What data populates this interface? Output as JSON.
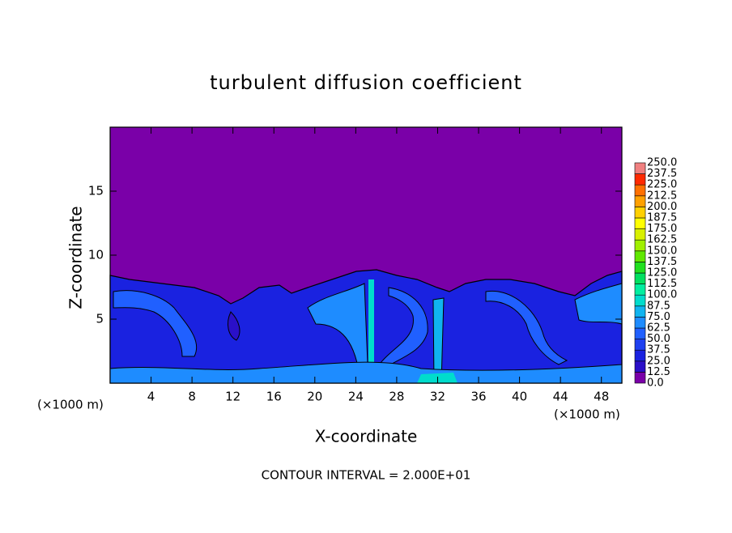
{
  "chart_data": {
    "type": "contour",
    "title": "turbulent diffusion coefficient",
    "xlabel": "X-coordinate",
    "ylabel": "Z-coordinate",
    "x_unit": "(×1000 m)",
    "footnote": "CONTOUR INTERVAL = 2.000E+01",
    "xlim": [
      0,
      50
    ],
    "xticks": [
      4,
      8,
      12,
      16,
      20,
      24,
      28,
      32,
      36,
      40,
      44,
      48
    ],
    "ylim": [
      0,
      20
    ],
    "yticks": [
      5,
      10,
      15
    ],
    "colorbar": {
      "levels": [
        {
          "value": 0,
          "label": "0.0"
        },
        {
          "value": 12.5,
          "label": "12.5"
        },
        {
          "value": 25,
          "label": "25.0"
        },
        {
          "value": 37.5,
          "label": "37.5"
        },
        {
          "value": 50,
          "label": "50.0"
        },
        {
          "value": 62.5,
          "label": "62.5"
        },
        {
          "value": 75,
          "label": "75.0"
        },
        {
          "value": 87.5,
          "label": "87.5"
        },
        {
          "value": 100,
          "label": "100.0"
        },
        {
          "value": 112.5,
          "label": "112.5"
        },
        {
          "value": 125,
          "label": "125.0"
        },
        {
          "value": 137.5,
          "label": "137.5"
        },
        {
          "value": 150,
          "label": "150.0"
        },
        {
          "value": 162.5,
          "label": "162.5"
        },
        {
          "value": 175,
          "label": "175.0"
        },
        {
          "value": 187.5,
          "label": "187.5"
        },
        {
          "value": 200,
          "label": "200.0"
        },
        {
          "value": 212.5,
          "label": "212.5"
        },
        {
          "value": 225,
          "label": "225.0"
        },
        {
          "value": 237.5,
          "label": "237.5"
        },
        {
          "value": 250,
          "label": "250.0"
        }
      ],
      "colors": [
        "#7a00a8",
        "#2a10c8",
        "#1a22e0",
        "#1e40f0",
        "#2060ff",
        "#1e8cff",
        "#10b4f0",
        "#00dccc",
        "#00eea0",
        "#00e060",
        "#20e020",
        "#60e800",
        "#a0f000",
        "#d8f000",
        "#ffff00",
        "#ffd000",
        "#ffa000",
        "#ff7000",
        "#ff2a00",
        "#f08080"
      ]
    }
  }
}
